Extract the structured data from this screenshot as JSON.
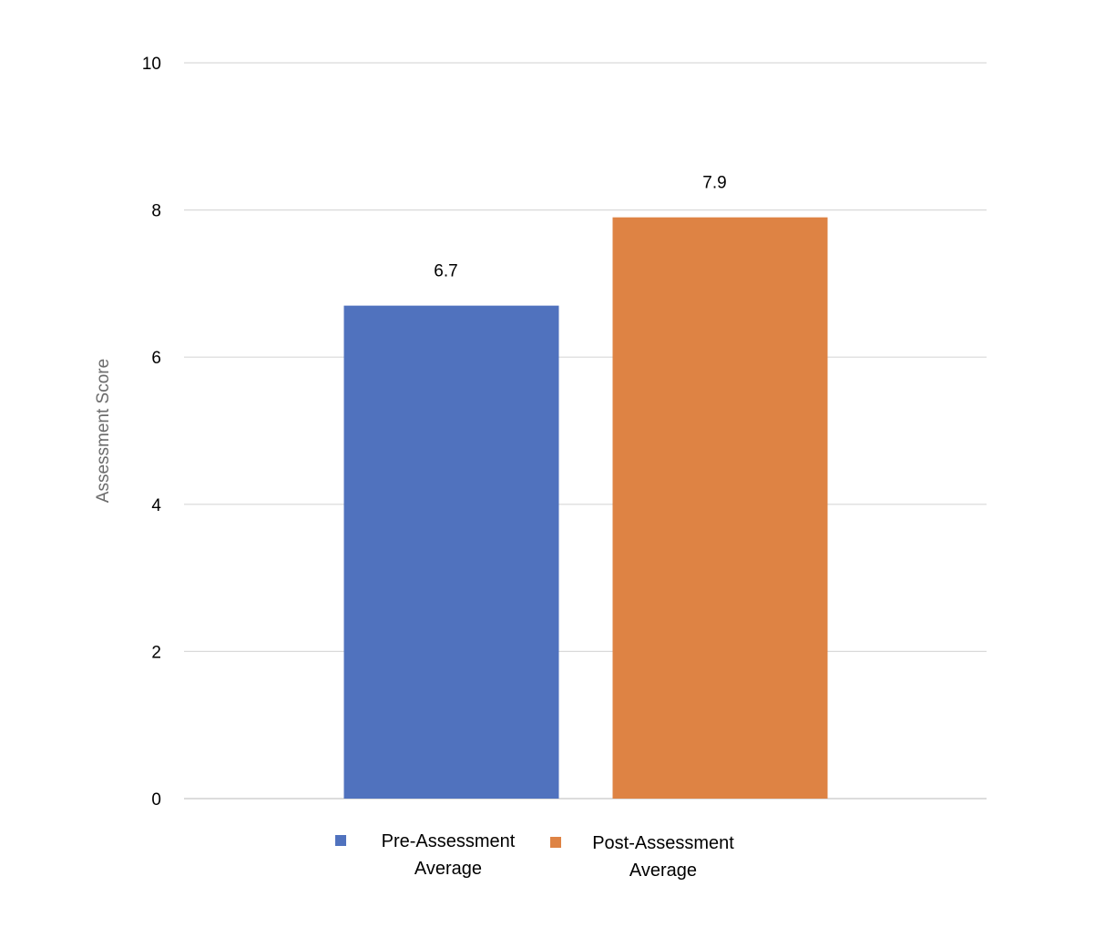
{
  "chart_data": {
    "type": "bar",
    "categories": [
      "Pre-Assessment Average",
      "Post-Assessment Average"
    ],
    "values": [
      6.7,
      7.9
    ],
    "data_labels": [
      "6.7",
      "7.9"
    ],
    "colors": [
      "#5072be",
      "#de8344"
    ],
    "title": "",
    "xlabel": "",
    "ylabel": "Assessment Score",
    "ylim": [
      0,
      10
    ],
    "yticks": [
      "0",
      "2",
      "4",
      "6",
      "8",
      "10"
    ],
    "grid": true,
    "legend": {
      "position": "bottom",
      "entries": [
        {
          "lines": [
            "Pre-Assessment",
            "Average"
          ]
        },
        {
          "lines": [
            "Post-Assessment",
            "Average"
          ]
        }
      ]
    }
  }
}
